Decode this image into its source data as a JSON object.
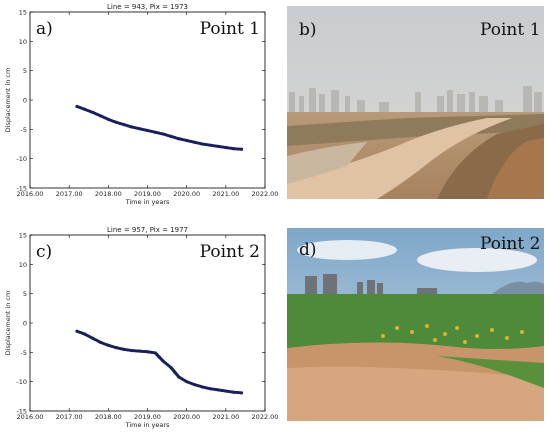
{
  "chart_data": [
    {
      "type": "scatter",
      "panel_label": "a)",
      "title": "Line = 943, Pix = 1973",
      "point_label": "Point 1",
      "xlabel": "Time in years",
      "ylabel": "Displacement in cm",
      "xlim": [
        2016.0,
        2022.0
      ],
      "ylim": [
        -15,
        15
      ],
      "xticks": [
        "2016.00",
        "2017.00",
        "2018.00",
        "2019.00",
        "2020.00",
        "2021.00",
        "2022.00"
      ],
      "yticks": [
        "15",
        "10",
        "5",
        "0",
        "-5",
        "-10",
        "-15"
      ],
      "series_color": "#1a1f5c",
      "x": [
        2017.2,
        2017.4,
        2017.6,
        2017.8,
        2018.0,
        2018.2,
        2018.4,
        2018.6,
        2018.8,
        2019.0,
        2019.2,
        2019.4,
        2019.6,
        2019.8,
        2020.0,
        2020.2,
        2020.4,
        2020.6,
        2020.8,
        2021.0,
        2021.2,
        2021.4
      ],
      "y": [
        -1.1,
        -1.6,
        -2.1,
        -2.7,
        -3.3,
        -3.8,
        -4.2,
        -4.6,
        -4.9,
        -5.2,
        -5.5,
        -5.8,
        -6.2,
        -6.6,
        -6.9,
        -7.2,
        -7.5,
        -7.7,
        -7.9,
        -8.1,
        -8.3,
        -8.4
      ]
    },
    {
      "type": "scatter",
      "panel_label": "c)",
      "title": "Line = 957, Pix = 1977",
      "point_label": "Point 2",
      "xlabel": "Time in years",
      "ylabel": "Displacement in cm",
      "xlim": [
        2016.0,
        2022.0
      ],
      "ylim": [
        -15,
        15
      ],
      "xticks": [
        "2016.00",
        "2017.00",
        "2018.00",
        "2019.00",
        "2020.00",
        "2021.00",
        "2022.00"
      ],
      "yticks": [
        "15",
        "10",
        "5",
        "0",
        "-5",
        "-10",
        "-15"
      ],
      "series_color": "#1a1f5c",
      "x": [
        2017.2,
        2017.4,
        2017.6,
        2017.8,
        2018.0,
        2018.2,
        2018.4,
        2018.6,
        2018.8,
        2019.0,
        2019.2,
        2019.3,
        2019.4,
        2019.6,
        2019.7,
        2019.8,
        2020.0,
        2020.2,
        2020.4,
        2020.6,
        2020.8,
        2021.0,
        2021.2,
        2021.4
      ],
      "y": [
        -1.4,
        -1.9,
        -2.6,
        -3.3,
        -3.8,
        -4.2,
        -4.5,
        -4.7,
        -4.8,
        -4.9,
        -5.1,
        -5.8,
        -6.5,
        -7.6,
        -8.4,
        -9.2,
        -10.0,
        -10.5,
        -10.9,
        -11.2,
        -11.4,
        -11.6,
        -11.8,
        -11.9
      ]
    }
  ],
  "photos": [
    {
      "panel_label": "b)",
      "point_label": "Point 1"
    },
    {
      "panel_label": "d)",
      "point_label": "Point 2"
    }
  ]
}
